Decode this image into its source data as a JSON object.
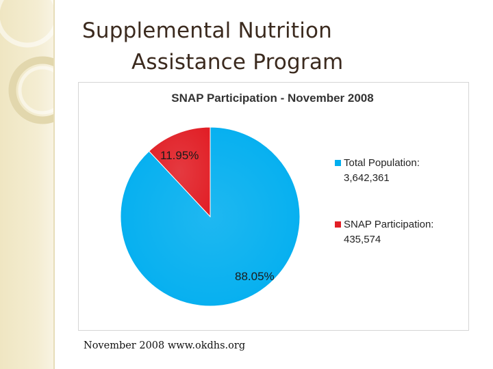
{
  "slide": {
    "title_line1": "Supplemental Nutrition",
    "title_line2": "Assistance Program",
    "source_note": "November 2008 www.okdhs.org"
  },
  "colors": {
    "total_population": "#00aeef",
    "snap_participation": "#e11f26",
    "decor_band": "#efe6c2"
  },
  "chart_data": {
    "type": "pie",
    "title": "SNAP Participation - November 2008",
    "slices": [
      {
        "name": "Total Population:",
        "value_text": "3,642,361",
        "value": 3642361,
        "percent": 88.05,
        "percent_label": "88.05%",
        "color": "#00aeef"
      },
      {
        "name": "SNAP Participation:",
        "value_text": "435,574",
        "value": 435574,
        "percent": 11.95,
        "percent_label": "11.95%",
        "color": "#e11f26"
      }
    ],
    "legend_position": "right"
  }
}
